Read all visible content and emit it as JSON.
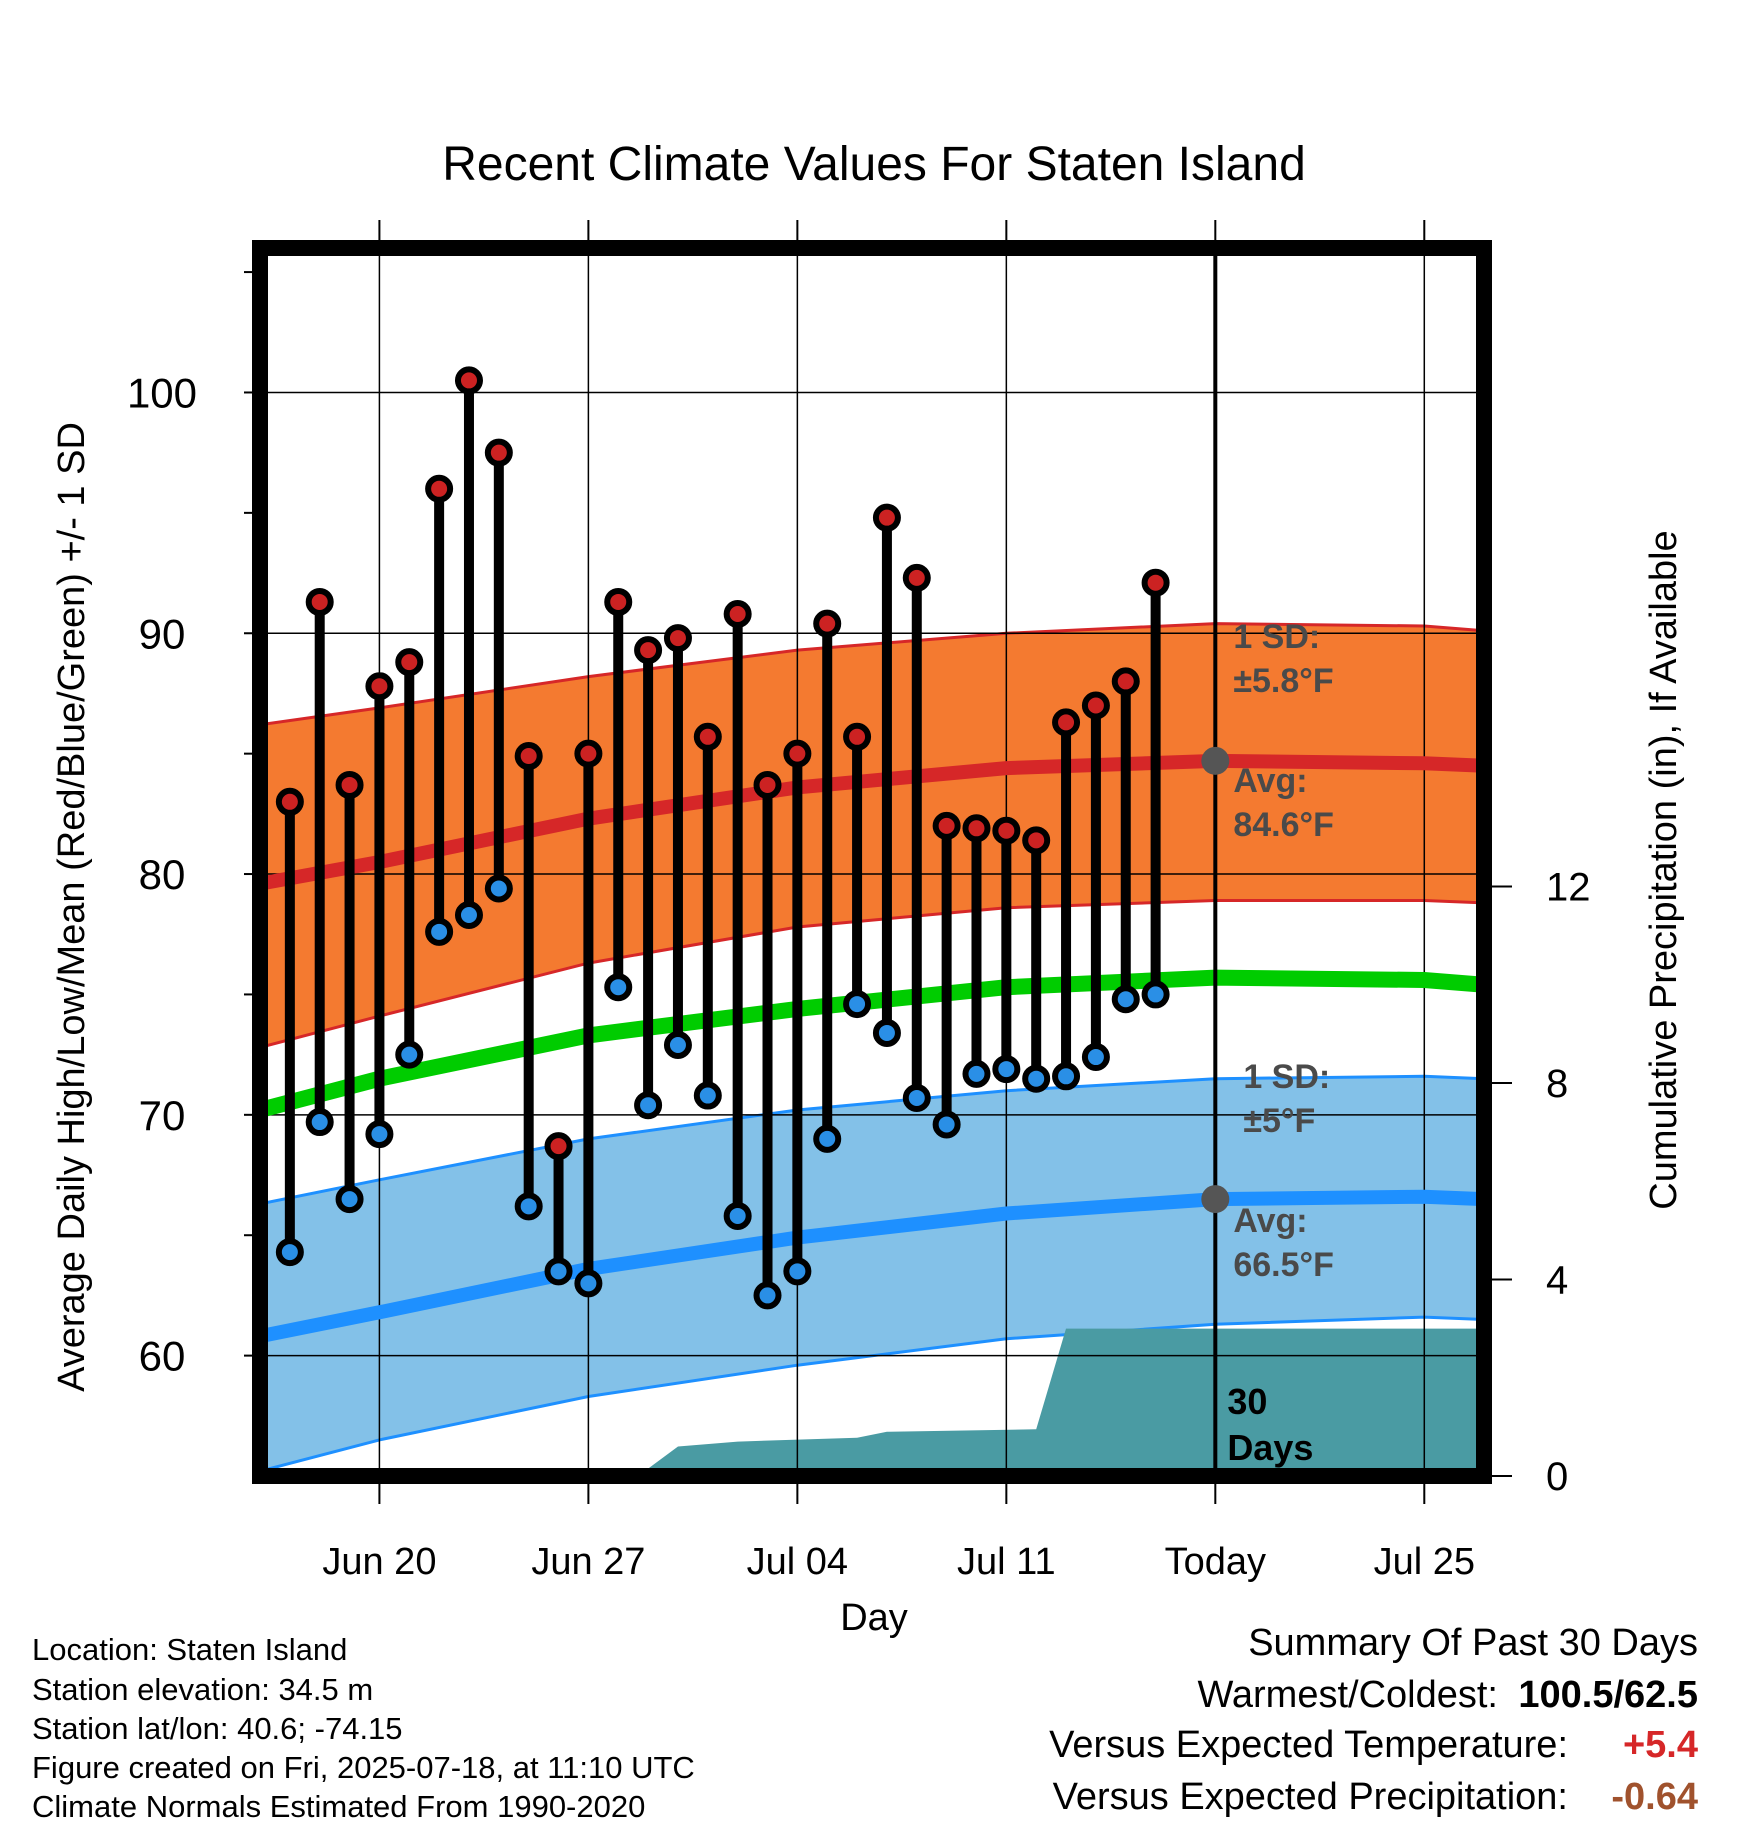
{
  "chart_data": {
    "type": "line",
    "title": "Recent Climate Values For Staten Island",
    "xlabel": "Day",
    "ylabel": "Average Daily High/Low/Mean (Red/Blue/Green) +/- 1 SD",
    "y2label": "Cumulative Precipitation (in), If Available",
    "ylim": [
      55,
      106
    ],
    "y2lim": [
      0,
      25
    ],
    "x_ticks": [
      "Jun 20",
      "Jun 27",
      "Jul 04",
      "Jul 11",
      "Today",
      "Jul 25"
    ],
    "x_tick_dates": [
      "2025-06-20",
      "2025-06-27",
      "2025-07-04",
      "2025-07-11",
      "2025-07-18",
      "2025-07-25"
    ],
    "xlim": [
      "2025-06-16",
      "2025-07-27"
    ],
    "y_ticks": [
      60,
      70,
      80,
      90,
      100
    ],
    "y2_ticks": [
      0,
      4,
      8,
      12
    ],
    "today": "2025-07-18",
    "grid": true,
    "daily_observations": [
      {
        "date": "2025-06-17",
        "high": 83.0,
        "low": 64.3
      },
      {
        "date": "2025-06-18",
        "high": 91.3,
        "low": 69.7
      },
      {
        "date": "2025-06-19",
        "high": 83.7,
        "low": 66.5
      },
      {
        "date": "2025-06-20",
        "high": 87.8,
        "low": 69.2
      },
      {
        "date": "2025-06-21",
        "high": 88.8,
        "low": 72.5
      },
      {
        "date": "2025-06-22",
        "high": 96.0,
        "low": 77.6
      },
      {
        "date": "2025-06-23",
        "high": 100.5,
        "low": 78.3
      },
      {
        "date": "2025-06-24",
        "high": 97.5,
        "low": 79.4
      },
      {
        "date": "2025-06-25",
        "high": 84.9,
        "low": 66.2
      },
      {
        "date": "2025-06-26",
        "high": 68.7,
        "low": 63.5
      },
      {
        "date": "2025-06-27",
        "high": 85.0,
        "low": 63.0
      },
      {
        "date": "2025-06-28",
        "high": 91.3,
        "low": 75.3
      },
      {
        "date": "2025-06-29",
        "high": 89.3,
        "low": 70.4
      },
      {
        "date": "2025-06-30",
        "high": 89.8,
        "low": 72.9
      },
      {
        "date": "2025-07-01",
        "high": 85.7,
        "low": 70.8
      },
      {
        "date": "2025-07-02",
        "high": 90.8,
        "low": 65.8
      },
      {
        "date": "2025-07-03",
        "high": 83.7,
        "low": 62.5
      },
      {
        "date": "2025-07-04",
        "high": 85.0,
        "low": 63.5
      },
      {
        "date": "2025-07-05",
        "high": 90.4,
        "low": 69.0
      },
      {
        "date": "2025-07-06",
        "high": 85.7,
        "low": 74.6
      },
      {
        "date": "2025-07-07",
        "high": 94.8,
        "low": 73.4
      },
      {
        "date": "2025-07-08",
        "high": 92.3,
        "low": 70.7
      },
      {
        "date": "2025-07-09",
        "high": 82.0,
        "low": 69.6
      },
      {
        "date": "2025-07-10",
        "high": 81.9,
        "low": 71.7
      },
      {
        "date": "2025-07-11",
        "high": 81.8,
        "low": 71.9
      },
      {
        "date": "2025-07-12",
        "high": 81.4,
        "low": 71.5
      },
      {
        "date": "2025-07-13",
        "high": 86.3,
        "low": 71.6
      },
      {
        "date": "2025-07-14",
        "high": 87.0,
        "low": 72.4
      },
      {
        "date": "2025-07-15",
        "high": 88.0,
        "low": 74.8
      },
      {
        "date": "2025-07-16",
        "high": 92.1,
        "low": 75.0
      }
    ],
    "normals": {
      "dates": [
        "2025-06-16",
        "2025-06-20",
        "2025-06-27",
        "2025-07-04",
        "2025-07-11",
        "2025-07-18",
        "2025-07-25",
        "2025-07-27"
      ],
      "high_avg": [
        79.6,
        80.5,
        82.3,
        83.6,
        84.4,
        84.7,
        84.6,
        84.5
      ],
      "high_sd_upper": [
        86.2,
        86.9,
        88.2,
        89.3,
        90.0,
        90.4,
        90.3,
        90.1
      ],
      "high_sd_lower": [
        72.8,
        74.1,
        76.3,
        77.8,
        78.6,
        78.9,
        78.9,
        78.8
      ],
      "mean_avg": [
        70.2,
        71.5,
        73.3,
        74.4,
        75.3,
        75.7,
        75.6,
        75.4
      ],
      "low_avg": [
        60.8,
        61.8,
        63.6,
        64.9,
        65.9,
        66.5,
        66.6,
        66.5
      ],
      "low_sd_upper": [
        66.3,
        67.3,
        69.0,
        70.2,
        71.0,
        71.5,
        71.6,
        71.5
      ],
      "low_sd_lower": [
        55.2,
        56.5,
        58.3,
        59.6,
        60.7,
        61.3,
        61.6,
        61.5
      ]
    },
    "cumulative_precip": {
      "dates": [
        "2025-06-16",
        "2025-06-20",
        "2025-06-27",
        "2025-06-29",
        "2025-06-30",
        "2025-07-02",
        "2025-07-06",
        "2025-07-07",
        "2025-07-12",
        "2025-07-13",
        "2025-07-27"
      ],
      "values": [
        0.0,
        0.02,
        0.1,
        0.15,
        0.6,
        0.7,
        0.78,
        0.9,
        0.95,
        3.0,
        3.0
      ]
    },
    "annotations": {
      "high_sd_label": "1 SD:",
      "high_sd_value": "±5.8°F",
      "high_avg_label": "Avg:",
      "high_avg_value": "84.6°F",
      "low_sd_label": "1 SD:",
      "low_sd_value": "±5°F",
      "low_avg_label": "Avg:",
      "low_avg_value": "66.5°F",
      "period_line1": "30",
      "period_line2": "Days"
    },
    "colors": {
      "high_band": "#f47a30",
      "high_line": "#d62728",
      "low_band": "#83c1e8",
      "low_line": "#1e90ff",
      "mean_line": "#00cc00",
      "precip": "#4a9ba3",
      "high_dot": "#cc2222",
      "low_dot": "#2a8fe6",
      "today_dot": "#555555",
      "annotation_text": "#4a4a4a"
    }
  },
  "metadata": {
    "location": "Location: Staten Island",
    "elevation": "Station elevation: 34.5 m",
    "latlon": "Station lat/lon: 40.6; -74.15",
    "created": "Figure created on Fri, 2025-07-18, at 11:10 UTC",
    "normals": "Climate Normals Estimated From 1990-2020"
  },
  "summary": {
    "title": "Summary Of Past 30 Days",
    "warm_cold_label": "Warmest/Coldest:",
    "warm_cold_value": "100.5/62.5",
    "temp_label": "Versus Expected Temperature:",
    "temp_value": "+5.4",
    "precip_label": "Versus Expected Precipitation:",
    "precip_value": "-0.64",
    "temp_color": "#d62728",
    "precip_color": "#a0522d"
  }
}
